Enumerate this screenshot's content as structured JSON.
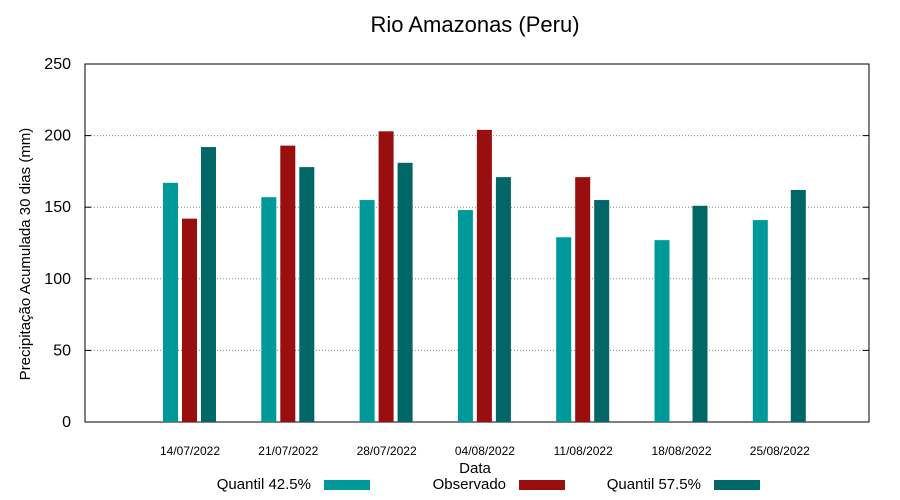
{
  "chart_data": {
    "type": "bar",
    "title": "Rio Amazonas (Peru)",
    "xlabel": "Data",
    "ylabel": "Precipitação Acumulada 30 dias (mm)",
    "ylim": [
      0,
      250
    ],
    "yticks": [
      0,
      50,
      100,
      150,
      200,
      250
    ],
    "grid": true,
    "legend_position": "bottom",
    "categories": [
      "14/07/2022",
      "21/07/2022",
      "28/07/2022",
      "04/08/2022",
      "11/08/2022",
      "18/08/2022",
      "25/08/2022"
    ],
    "series": [
      {
        "name": "Quantil 42.5%",
        "color": "#009999",
        "values": [
          167,
          157,
          155,
          148,
          129,
          127,
          141
        ]
      },
      {
        "name": "Observado",
        "color": "#990f0f",
        "values": [
          142,
          193,
          203,
          204,
          171,
          null,
          null
        ]
      },
      {
        "name": "Quantil 57.5%",
        "color": "#006666",
        "values": [
          192,
          178,
          181,
          171,
          155,
          151,
          162
        ]
      }
    ]
  }
}
